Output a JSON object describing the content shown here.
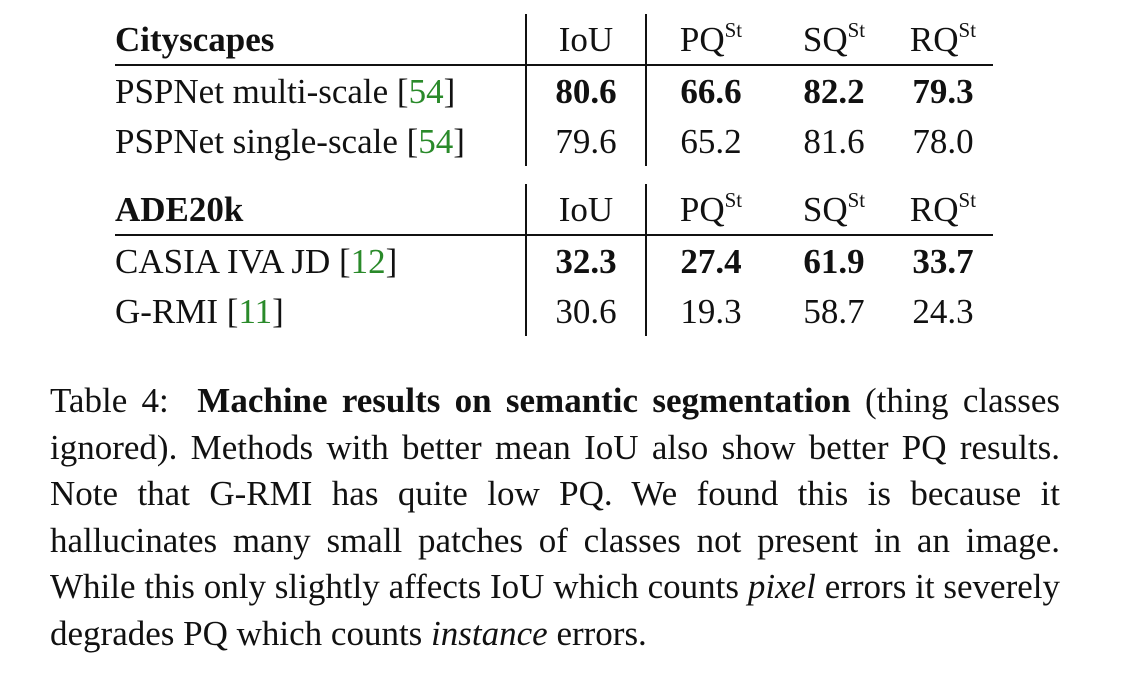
{
  "tables": [
    {
      "dataset": "Cityscapes",
      "columns": [
        "IoU",
        "PQ",
        "SQ",
        "RQ"
      ],
      "superscript": "St",
      "rows": [
        {
          "method": "PSPNet multi-scale [",
          "ref": "54",
          "close": "]",
          "values": [
            "80.6",
            "66.6",
            "82.2",
            "79.3"
          ],
          "bold": true
        },
        {
          "method": "PSPNet single-scale [",
          "ref": "54",
          "close": "]",
          "values": [
            "79.6",
            "65.2",
            "81.6",
            "78.0"
          ],
          "bold": false
        }
      ]
    },
    {
      "dataset": "ADE20k",
      "columns": [
        "IoU",
        "PQ",
        "SQ",
        "RQ"
      ],
      "superscript": "St",
      "rows": [
        {
          "method": "CASIA IVA JD [",
          "ref": "12",
          "close": "]",
          "values": [
            "32.3",
            "27.4",
            "61.9",
            "33.7"
          ],
          "bold": true
        },
        {
          "method": "G-RMI [",
          "ref": "11",
          "close": "]",
          "values": [
            "30.6",
            "19.3",
            "58.7",
            "24.3"
          ],
          "bold": false
        }
      ]
    }
  ],
  "caption": {
    "prefix": "Table 4:",
    "bold_title": "Machine results on semantic segmentation",
    "line1_rest": "(thing classes ignored). Methods with better mean IoU also show better PQ results. Note that G-RMI has quite low PQ. We found this is because it hallucinates many small patches of classes not present in an image. While this only slightly affects IoU which counts",
    "italic1": "pixel",
    "mid": "errors it severely degrades PQ which counts",
    "italic2": "instance",
    "end": "errors."
  },
  "colors": {
    "ref_link": "#2a8a2a",
    "text": "#111111",
    "background": "#ffffff"
  }
}
